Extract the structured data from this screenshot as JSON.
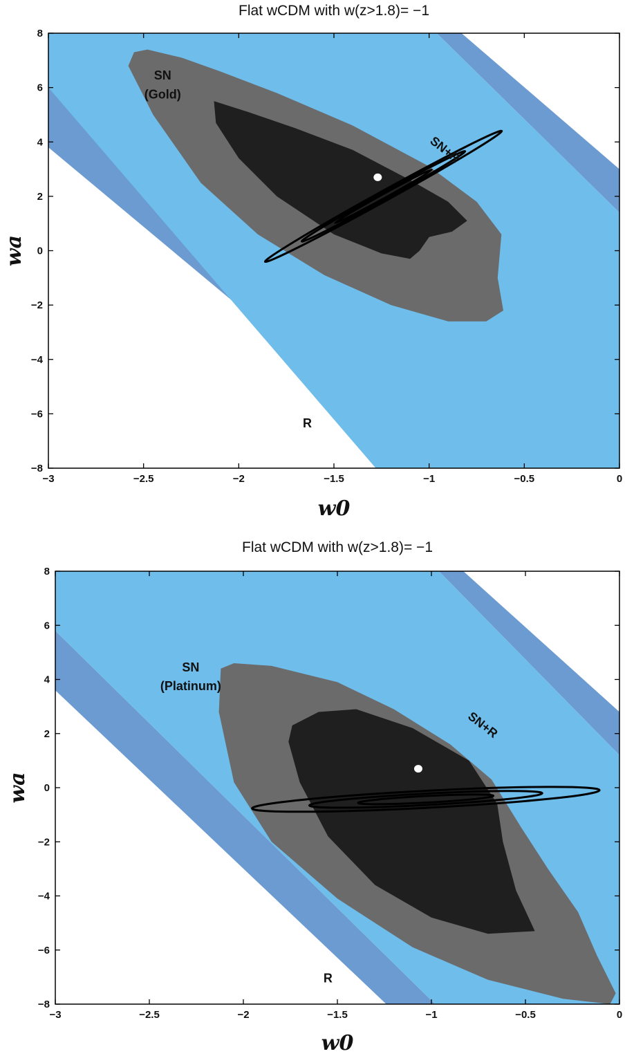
{
  "chart_data": [
    {
      "type": "contour",
      "title": "Flat wCDM with w(z>1.8)= −1",
      "xlabel": "w0",
      "ylabel": "wa",
      "xlim": [
        -3,
        0
      ],
      "ylim": [
        -8,
        8
      ],
      "xticks": [
        -3,
        -2.5,
        -2,
        -1.5,
        -1,
        -0.5,
        0
      ],
      "yticks": [
        -8,
        -6,
        -4,
        -2,
        0,
        2,
        4,
        6,
        8
      ],
      "xtick_labels": [
        "−3",
        "−2.5",
        "−2",
        "−1.5",
        "−1",
        "−0.5",
        "0"
      ],
      "ytick_labels": [
        "−8",
        "−6",
        "−4",
        "−2",
        "0",
        "2",
        "4",
        "6",
        "8"
      ],
      "annotations": [
        {
          "text": "SN",
          "x": -2.4,
          "y": 6.3
        },
        {
          "text": "(Gold)",
          "x": -2.4,
          "y": 5.6
        },
        {
          "text": "SN+R",
          "x": -0.93,
          "y": 3.6,
          "rotation": 38
        },
        {
          "text": "R",
          "x": -1.64,
          "y": -6.5
        }
      ],
      "best_fit": {
        "w0": -1.27,
        "wa": 2.7
      },
      "regions": {
        "R_band_2sigma": {
          "color": "#6b9bd1",
          "polygon": [
            [
              -3,
              3.8
            ],
            [
              -3,
              6.0
            ],
            [
              -0.78,
              -8
            ],
            [
              -0.98,
              -8
            ]
          ]
        },
        "R_band_1sigma": {
          "color": "#6b9bd1",
          "polygon": [
            [
              -0.96,
              8
            ],
            [
              -0.83,
              8
            ],
            [
              0,
              3.0
            ],
            [
              0,
              1.4
            ]
          ]
        },
        "R_inner": {
          "color": "#6fbdeb",
          "polygon": [
            [
              -3,
              6.0
            ],
            [
              -3,
              8
            ],
            [
              -0.96,
              8
            ],
            [
              0,
              1.4
            ],
            [
              0,
              -8
            ],
            [
              -0.98,
              -8
            ],
            [
              -1.28,
              -8
            ]
          ]
        },
        "SN_2sigma": {
          "color": "#6b6b6b",
          "polygon": [
            [
              -2.55,
              7.3
            ],
            [
              -2.48,
              7.4
            ],
            [
              -2.3,
              7.1
            ],
            [
              -2.1,
              6.6
            ],
            [
              -1.8,
              5.8
            ],
            [
              -1.4,
              4.6
            ],
            [
              -1.0,
              3.1
            ],
            [
              -0.75,
              1.8
            ],
            [
              -0.62,
              0.6
            ],
            [
              -0.64,
              -1.0
            ],
            [
              -0.61,
              -2.2
            ],
            [
              -0.7,
              -2.6
            ],
            [
              -0.9,
              -2.6
            ],
            [
              -1.2,
              -2.0
            ],
            [
              -1.55,
              -0.9
            ],
            [
              -1.9,
              0.6
            ],
            [
              -2.2,
              2.5
            ],
            [
              -2.45,
              5.0
            ],
            [
              -2.58,
              6.8
            ]
          ]
        },
        "SN_1sigma": {
          "color": "#1f1f1f",
          "polygon": [
            [
              -2.13,
              5.5
            ],
            [
              -1.95,
              5.1
            ],
            [
              -1.7,
              4.5
            ],
            [
              -1.4,
              3.7
            ],
            [
              -1.1,
              2.6
            ],
            [
              -0.9,
              1.8
            ],
            [
              -0.8,
              1.1
            ],
            [
              -0.88,
              0.7
            ],
            [
              -1.0,
              0.5
            ],
            [
              -1.05,
              0.0
            ],
            [
              -1.1,
              -0.3
            ],
            [
              -1.25,
              -0.1
            ],
            [
              -1.5,
              0.6
            ],
            [
              -1.8,
              2.0
            ],
            [
              -2.0,
              3.4
            ],
            [
              -2.12,
              4.7
            ]
          ]
        }
      },
      "contours_SN_R": [
        {
          "center": [
            -1.24,
            2.0
          ],
          "rx": 0.71,
          "ry": 0.57,
          "angle_deg": 14.9
        },
        {
          "center": [
            -1.24,
            2.0
          ],
          "rx": 0.49,
          "ry": 0.39,
          "angle_deg": 14.9
        },
        {
          "center": [
            -1.24,
            2.0
          ],
          "rx": 0.29,
          "ry": 0.23,
          "angle_deg": 14.9
        }
      ]
    },
    {
      "type": "contour",
      "title": "Flat wCDM with w(z>1.8)= −1",
      "xlabel": "w0",
      "ylabel": "wa",
      "xlim": [
        -3,
        0
      ],
      "ylim": [
        -8,
        8
      ],
      "xticks": [
        -3,
        -2.5,
        -2,
        -1.5,
        -1,
        -0.5,
        0
      ],
      "yticks": [
        -8,
        -6,
        -4,
        -2,
        0,
        2,
        4,
        6,
        8
      ],
      "xtick_labels": [
        "−3",
        "−2.5",
        "−2",
        "−1.5",
        "−1",
        "−0.5",
        "0"
      ],
      "ytick_labels": [
        "−8",
        "−6",
        "−4",
        "−2",
        "0",
        "2",
        "4",
        "6",
        "8"
      ],
      "annotations": [
        {
          "text": "SN",
          "x": -2.28,
          "y": 4.3
        },
        {
          "text": "(Platinum)",
          "x": -2.28,
          "y": 3.6
        },
        {
          "text": "SN+R",
          "x": -0.74,
          "y": 2.2,
          "rotation": 38
        },
        {
          "text": "R",
          "x": -1.55,
          "y": -7.2
        }
      ],
      "best_fit": {
        "w0": -1.07,
        "wa": 0.7
      },
      "regions": {
        "R_band_2sigma": {
          "color": "#6b9bd1",
          "polygon": [
            [
              -3,
              3.6
            ],
            [
              -3,
              5.8
            ],
            [
              -0.98,
              -8
            ],
            [
              -1.24,
              -8
            ]
          ]
        },
        "R_band_1sigma": {
          "color": "#6b9bd1",
          "polygon": [
            [
              -0.96,
              8
            ],
            [
              -0.83,
              8
            ],
            [
              0,
              2.8
            ],
            [
              0,
              1.2
            ]
          ]
        },
        "R_inner": {
          "color": "#6fbdeb",
          "polygon": [
            [
              -3,
              5.8
            ],
            [
              -3,
              8
            ],
            [
              -0.96,
              8
            ],
            [
              0,
              1.2
            ],
            [
              0,
              -8
            ],
            [
              -0.98,
              -8
            ]
          ]
        },
        "SN_2sigma": {
          "color": "#6b6b6b",
          "polygon": [
            [
              -2.12,
              4.4
            ],
            [
              -2.05,
              4.6
            ],
            [
              -1.85,
              4.5
            ],
            [
              -1.5,
              3.9
            ],
            [
              -1.2,
              2.9
            ],
            [
              -0.9,
              1.6
            ],
            [
              -0.68,
              0.3
            ],
            [
              -0.52,
              -1.5
            ],
            [
              -0.38,
              -3.0
            ],
            [
              -0.22,
              -4.6
            ],
            [
              -0.12,
              -6.2
            ],
            [
              -0.02,
              -7.6
            ],
            [
              -0.05,
              -8
            ],
            [
              -0.3,
              -7.8
            ],
            [
              -0.7,
              -7.1
            ],
            [
              -1.1,
              -5.9
            ],
            [
              -1.5,
              -4.1
            ],
            [
              -1.85,
              -2.0
            ],
            [
              -2.05,
              0.2
            ],
            [
              -2.13,
              2.8
            ]
          ]
        },
        "SN_1sigma": {
          "color": "#1f1f1f",
          "polygon": [
            [
              -1.74,
              2.3
            ],
            [
              -1.6,
              2.8
            ],
            [
              -1.4,
              2.9
            ],
            [
              -1.1,
              2.2
            ],
            [
              -0.8,
              1.0
            ],
            [
              -0.65,
              -0.6
            ],
            [
              -0.62,
              -2.0
            ],
            [
              -0.55,
              -3.8
            ],
            [
              -0.45,
              -5.3
            ],
            [
              -0.7,
              -5.4
            ],
            [
              -1.0,
              -4.8
            ],
            [
              -1.3,
              -3.6
            ],
            [
              -1.55,
              -1.8
            ],
            [
              -1.7,
              0.2
            ],
            [
              -1.76,
              1.7
            ]
          ]
        }
      },
      "contours_SN_R": [
        {
          "center": [
            -1.03,
            -0.43
          ],
          "rx": 0.925,
          "ry": 0.95,
          "angle_deg": -11.0
        },
        {
          "center": [
            -1.03,
            -0.43
          ],
          "rx": 0.62,
          "ry": 0.64,
          "angle_deg": -11.0
        },
        {
          "center": [
            -1.03,
            -0.43
          ],
          "rx": 0.36,
          "ry": 0.37,
          "angle_deg": -11.0
        }
      ]
    }
  ]
}
